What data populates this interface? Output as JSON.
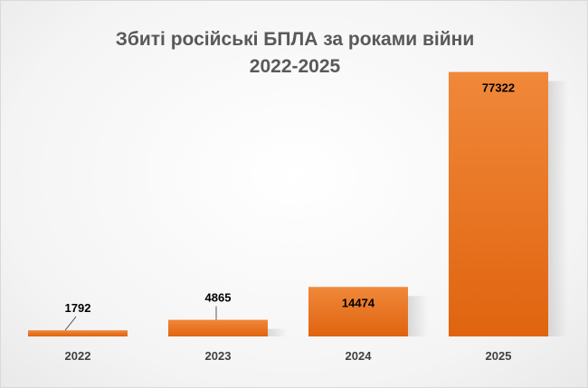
{
  "chart_data": {
    "type": "bar",
    "title_line1": "Збиті російські БПЛА за роками війни",
    "title_line2": "2022-2025",
    "categories": [
      "2022",
      "2023",
      "2024",
      "2025"
    ],
    "values": [
      1792,
      4865,
      14474,
      77322
    ],
    "xlabel": "",
    "ylabel": "",
    "ylim": [
      0,
      78000
    ],
    "grid": false,
    "legend": "none",
    "bar_color": "#e46c0a",
    "bar_color_light": "#f0883a"
  }
}
